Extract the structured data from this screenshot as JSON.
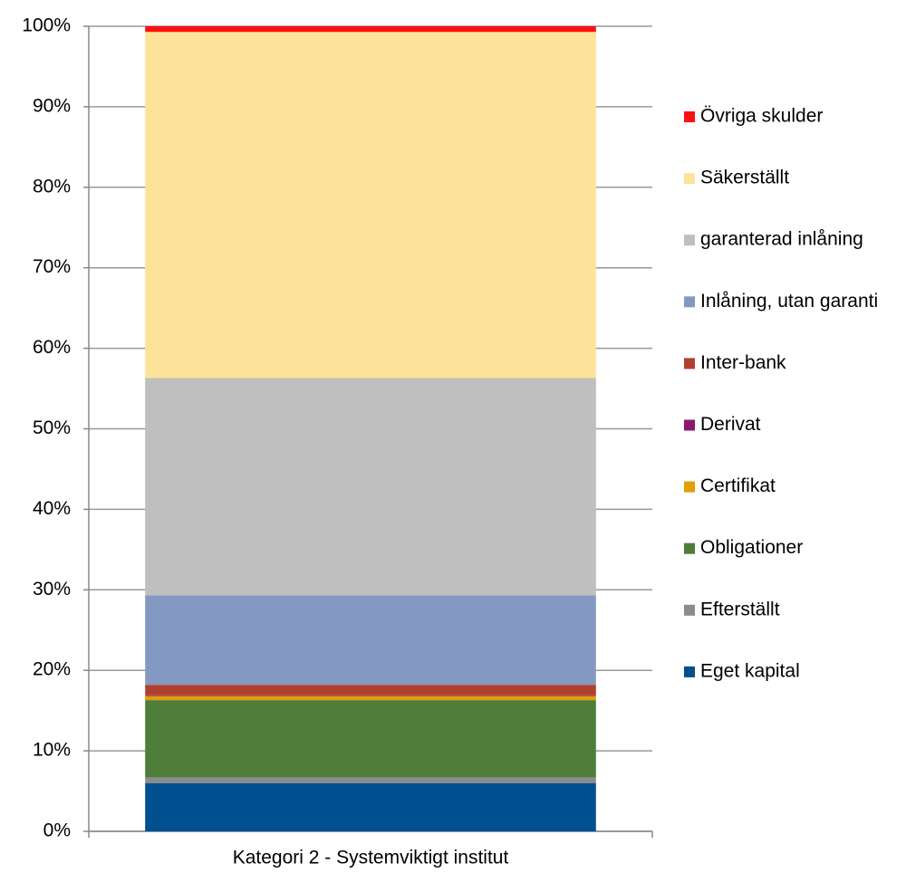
{
  "chart_data": {
    "type": "stacked_bar",
    "categories": [
      "Kategori 2 - Systemviktigt institut"
    ],
    "series": [
      {
        "name": "Eget kapital",
        "color": "#00508f",
        "values": [
          6.0
        ]
      },
      {
        "name": "Efterställt",
        "color": "#8c8c8c",
        "values": [
          0.7
        ]
      },
      {
        "name": "Obligationer",
        "color": "#4e7e3a",
        "values": [
          9.6
        ]
      },
      {
        "name": "Certifikat",
        "color": "#e0a000",
        "values": [
          0.5
        ]
      },
      {
        "name": "Derivat",
        "color": "#8b1a6e",
        "values": [
          0.1
        ]
      },
      {
        "name": "Inter-bank",
        "color": "#b0402e",
        "values": [
          1.3
        ]
      },
      {
        "name": "Inlåning, utan garanti",
        "color": "#8499c2",
        "values": [
          11.1
        ]
      },
      {
        "name": "garanterad inlåning",
        "color": "#bfbfbf",
        "values": [
          27.0
        ]
      },
      {
        "name": "Säkerställt",
        "color": "#fde39a",
        "values": [
          43.0
        ]
      },
      {
        "name": "Övriga skulder",
        "color": "#ff1010",
        "values": [
          0.7
        ]
      }
    ],
    "ylim": [
      0,
      100
    ],
    "yticks": [
      {
        "value": 0,
        "label": "0%"
      },
      {
        "value": 10,
        "label": "10%"
      },
      {
        "value": 20,
        "label": "20%"
      },
      {
        "value": 30,
        "label": "30%"
      },
      {
        "value": 40,
        "label": "40%"
      },
      {
        "value": 50,
        "label": "50%"
      },
      {
        "value": 60,
        "label": "60%"
      },
      {
        "value": 70,
        "label": "70%"
      },
      {
        "value": 80,
        "label": "80%"
      },
      {
        "value": 90,
        "label": "90%"
      },
      {
        "value": 100,
        "label": "100%"
      }
    ],
    "grid": true,
    "legend": "right"
  }
}
